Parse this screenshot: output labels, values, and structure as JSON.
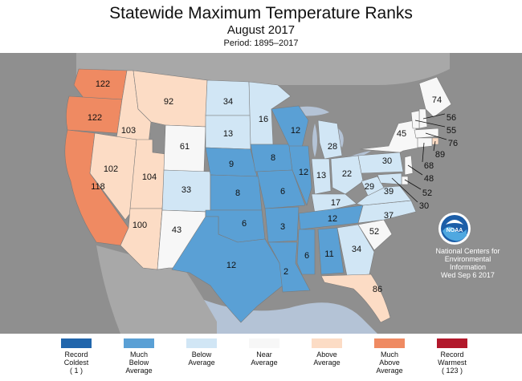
{
  "header": {
    "title": "Statewide Maximum Temperature Ranks",
    "subtitle": "August 2017",
    "period": "Period: 1895–2017"
  },
  "colors": {
    "record_coldest": "#2166ac",
    "much_below": "#5aa0d5",
    "below": "#d1e6f5",
    "near": "#f7f7f7",
    "above": "#fcdcc5",
    "much_above": "#ef8a62",
    "record_warmest": "#b2182b",
    "background": "#8f8f8f",
    "water": "#b4c3d6",
    "land": "#a8a8a8"
  },
  "states": [
    {
      "abbr": "WA",
      "rank": "122",
      "category": "much_above"
    },
    {
      "abbr": "OR",
      "rank": "122",
      "category": "much_above"
    },
    {
      "abbr": "CA",
      "rank": "118",
      "category": "much_above"
    },
    {
      "abbr": "ID",
      "rank": "103",
      "category": "above"
    },
    {
      "abbr": "NV",
      "rank": "102",
      "category": "above"
    },
    {
      "abbr": "UT",
      "rank": "104",
      "category": "above"
    },
    {
      "abbr": "AZ",
      "rank": "100",
      "category": "above"
    },
    {
      "abbr": "MT",
      "rank": "92",
      "category": "above"
    },
    {
      "abbr": "WY",
      "rank": "61",
      "category": "near"
    },
    {
      "abbr": "CO",
      "rank": "33",
      "category": "below"
    },
    {
      "abbr": "NM",
      "rank": "43",
      "category": "near"
    },
    {
      "abbr": "ND",
      "rank": "34",
      "category": "below"
    },
    {
      "abbr": "SD",
      "rank": "13",
      "category": "below"
    },
    {
      "abbr": "NE",
      "rank": "9",
      "category": "much_below"
    },
    {
      "abbr": "KS",
      "rank": "8",
      "category": "much_below"
    },
    {
      "abbr": "OK",
      "rank": "6",
      "category": "much_below"
    },
    {
      "abbr": "TX",
      "rank": "12",
      "category": "much_below"
    },
    {
      "abbr": "MN",
      "rank": "16",
      "category": "below"
    },
    {
      "abbr": "IA",
      "rank": "8",
      "category": "much_below"
    },
    {
      "abbr": "MO",
      "rank": "6",
      "category": "much_below"
    },
    {
      "abbr": "AR",
      "rank": "3",
      "category": "much_below"
    },
    {
      "abbr": "LA",
      "rank": "2",
      "category": "much_below"
    },
    {
      "abbr": "WI",
      "rank": "12",
      "category": "much_below"
    },
    {
      "abbr": "IL",
      "rank": "12",
      "category": "much_below"
    },
    {
      "abbr": "MI",
      "rank": "28",
      "category": "below"
    },
    {
      "abbr": "IN",
      "rank": "13",
      "category": "below"
    },
    {
      "abbr": "OH",
      "rank": "22",
      "category": "below"
    },
    {
      "abbr": "KY",
      "rank": "17",
      "category": "below"
    },
    {
      "abbr": "TN",
      "rank": "12",
      "category": "much_below"
    },
    {
      "abbr": "MS",
      "rank": "6",
      "category": "much_below"
    },
    {
      "abbr": "AL",
      "rank": "11",
      "category": "much_below"
    },
    {
      "abbr": "GA",
      "rank": "34",
      "category": "below"
    },
    {
      "abbr": "FL",
      "rank": "86",
      "category": "above"
    },
    {
      "abbr": "SC",
      "rank": "52",
      "category": "near"
    },
    {
      "abbr": "NC",
      "rank": "37",
      "category": "below"
    },
    {
      "abbr": "VA",
      "rank": "39",
      "category": "below"
    },
    {
      "abbr": "WV",
      "rank": "29",
      "category": "below"
    },
    {
      "abbr": "PA",
      "rank": "30",
      "category": "below"
    },
    {
      "abbr": "NY",
      "rank": "45",
      "category": "near"
    },
    {
      "abbr": "ME",
      "rank": "74",
      "category": "near"
    },
    {
      "abbr": "NH",
      "rank": "56",
      "category": "near"
    },
    {
      "abbr": "VT",
      "rank": "55",
      "category": "near"
    },
    {
      "abbr": "MA",
      "rank": "76",
      "category": "near"
    },
    {
      "abbr": "RI",
      "rank": "89",
      "category": "above"
    },
    {
      "abbr": "CT",
      "rank": "68",
      "category": "near"
    },
    {
      "abbr": "NJ",
      "rank": "48",
      "category": "near"
    },
    {
      "abbr": "DE",
      "rank": "52",
      "category": "near"
    },
    {
      "abbr": "MD",
      "rank": "30",
      "category": "below"
    }
  ],
  "legend": [
    {
      "key": "record_coldest",
      "lines": [
        "Record",
        "Coldest",
        "( 1 )"
      ]
    },
    {
      "key": "much_below",
      "lines": [
        "Much",
        "Below",
        "Average"
      ]
    },
    {
      "key": "below",
      "lines": [
        "Below",
        "Average"
      ]
    },
    {
      "key": "near",
      "lines": [
        "Near",
        "Average"
      ]
    },
    {
      "key": "above",
      "lines": [
        "Above",
        "Average"
      ]
    },
    {
      "key": "much_above",
      "lines": [
        "Much",
        "Above",
        "Average"
      ]
    },
    {
      "key": "record_warmest",
      "lines": [
        "Record",
        "Warmest",
        "( 123 )"
      ]
    }
  ],
  "credit": {
    "logo_text": "NOAA",
    "line1": "National Centers for",
    "line2": "Environmental",
    "line3": "Information",
    "date": "Wed Sep  6 2017"
  }
}
